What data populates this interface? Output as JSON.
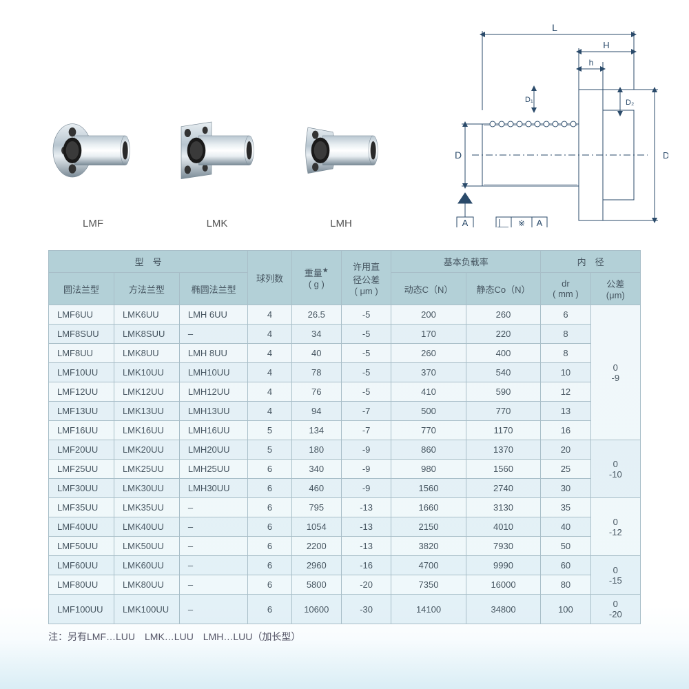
{
  "products": [
    {
      "label": "LMF",
      "flange": "round"
    },
    {
      "label": "LMK",
      "flange": "square"
    },
    {
      "label": "LMH",
      "flange": "oblong"
    }
  ],
  "diagram": {
    "labels": {
      "L": "L",
      "H": "H",
      "h": "h",
      "D": "D",
      "D1": "D₁",
      "D2": "D₂",
      "A": "A",
      "datum": "※"
    },
    "stroke": "#2a4a6a"
  },
  "table": {
    "header": {
      "model_group": "型　号",
      "round_flange": "圆法兰型",
      "square_flange": "方法兰型",
      "oval_flange": "椭圆法兰型",
      "ball_rows": "球列数",
      "weight": "重量",
      "weight_unit": "( g )",
      "weight_star": "★",
      "tolerance": "许用直",
      "tolerance2": "径公差",
      "tolerance_unit": "( μm )",
      "load_group": "基本负载率",
      "dynamic": "动态C（N）",
      "static": "静态Co（N）",
      "inner_group": "内　径",
      "dr": "dr",
      "dr_unit": "( mm )",
      "tol2": "公差",
      "tol2_unit": "(μm)"
    },
    "tolerance_groups": [
      {
        "span": 7,
        "text": "0\n-9"
      },
      {
        "span": 3,
        "text": "0\n-10"
      },
      {
        "span": 3,
        "text": "0\n-12"
      },
      {
        "span": 2,
        "text": "0\n-15"
      },
      {
        "span": 1,
        "text": "0\n-20"
      }
    ],
    "rows": [
      [
        "LMF6UU",
        "LMK6UU",
        "LMH 6UU",
        "4",
        "26.5",
        "-5",
        "200",
        "260",
        "6"
      ],
      [
        "LMF8SUU",
        "LMK8SUU",
        "–",
        "4",
        "34",
        "-5",
        "170",
        "220",
        "8"
      ],
      [
        "LMF8UU",
        "LMK8UU",
        "LMH 8UU",
        "4",
        "40",
        "-5",
        "260",
        "400",
        "8"
      ],
      [
        "LMF10UU",
        "LMK10UU",
        "LMH10UU",
        "4",
        "78",
        "-5",
        "370",
        "540",
        "10"
      ],
      [
        "LMF12UU",
        "LMK12UU",
        "LMH12UU",
        "4",
        "76",
        "-5",
        "410",
        "590",
        "12"
      ],
      [
        "LMF13UU",
        "LMK13UU",
        "LMH13UU",
        "4",
        "94",
        "-7",
        "500",
        "770",
        "13"
      ],
      [
        "LMF16UU",
        "LMK16UU",
        "LMH16UU",
        "5",
        "134",
        "-7",
        "770",
        "1170",
        "16"
      ],
      [
        "LMF20UU",
        "LMK20UU",
        "LMH20UU",
        "5",
        "180",
        "-9",
        "860",
        "1370",
        "20"
      ],
      [
        "LMF25UU",
        "LMK25UU",
        "LMH25UU",
        "6",
        "340",
        "-9",
        "980",
        "1560",
        "25"
      ],
      [
        "LMF30UU",
        "LMK30UU",
        "LMH30UU",
        "6",
        "460",
        "-9",
        "1560",
        "2740",
        "30"
      ],
      [
        "LMF35UU",
        "LMK35UU",
        "–",
        "6",
        "795",
        "-13",
        "1660",
        "3130",
        "35"
      ],
      [
        "LMF40UU",
        "LMK40UU",
        "–",
        "6",
        "1054",
        "-13",
        "2150",
        "4010",
        "40"
      ],
      [
        "LMF50UU",
        "LMK50UU",
        "–",
        "6",
        "2200",
        "-13",
        "3820",
        "7930",
        "50"
      ],
      [
        "LMF60UU",
        "LMK60UU",
        "–",
        "6",
        "2960",
        "-16",
        "4700",
        "9990",
        "60"
      ],
      [
        "LMF80UU",
        "LMK80UU",
        "–",
        "6",
        "5800",
        "-20",
        "7350",
        "16000",
        "80"
      ],
      [
        "LMF100UU",
        "LMK100UU",
        "–",
        "6",
        "10600",
        "-30",
        "14100",
        "34800",
        "100"
      ]
    ]
  },
  "footnote": "注：另有LMF…LUU　LMK…LUU　LMH…LUU（加长型）",
  "colors": {
    "header_bg": "#b3d0d7",
    "border": "#a8bec8",
    "text": "#4a5a6a",
    "metal_light": "#e8eef2",
    "metal_mid": "#b8c6d0",
    "metal_dark": "#7a8a96"
  }
}
